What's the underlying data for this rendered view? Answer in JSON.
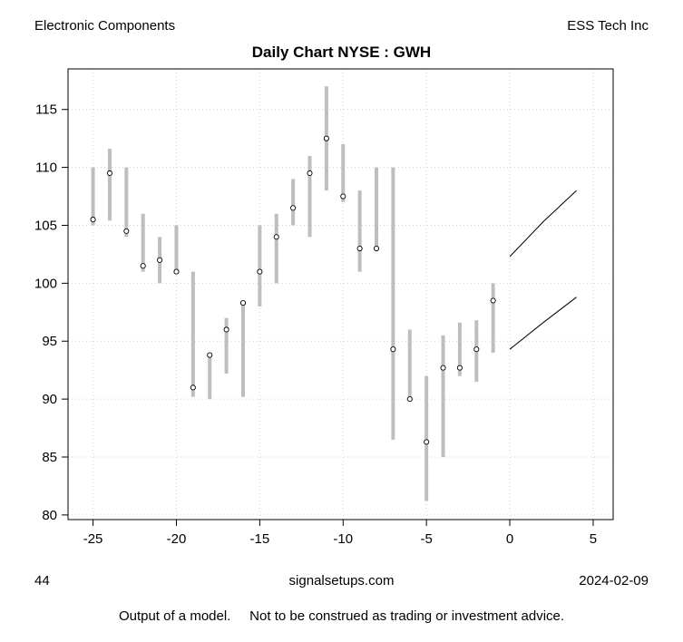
{
  "header": {
    "left": "Electronic Components",
    "right": "ESS Tech Inc"
  },
  "footer": {
    "left": "44",
    "center": "signalsetups.com",
    "right": "2024-02-09",
    "disclaimer": "Output of a model.     Not to be construed as trading or investment advice."
  },
  "chart_data": {
    "type": "range-bar",
    "title": "Daily Chart NYSE : GWH",
    "xlabel": "",
    "ylabel": "",
    "xlim": [
      -26.5,
      6.2
    ],
    "ylim": [
      79.6,
      118.5
    ],
    "x_ticks": [
      -25,
      -20,
      -15,
      -10,
      -5,
      0,
      5
    ],
    "y_ticks": [
      80,
      85,
      90,
      95,
      100,
      105,
      110,
      115
    ],
    "grid": true,
    "bar_color": "#bebebe",
    "line_color": "#000000",
    "series": [
      {
        "x": -25,
        "low": 105.0,
        "high": 110.0,
        "close": 105.5
      },
      {
        "x": -24,
        "low": 105.4,
        "high": 111.6,
        "close": 109.5
      },
      {
        "x": -23,
        "low": 104.0,
        "high": 110.0,
        "close": 104.5
      },
      {
        "x": -22,
        "low": 101.0,
        "high": 106.0,
        "close": 101.5
      },
      {
        "x": -21,
        "low": 100.0,
        "high": 104.0,
        "close": 102.0
      },
      {
        "x": -20,
        "low": 101.0,
        "high": 105.0,
        "close": 101.0
      },
      {
        "x": -19,
        "low": 90.2,
        "high": 101.0,
        "close": 91.0
      },
      {
        "x": -18,
        "low": 90.0,
        "high": 94.0,
        "close": 93.8
      },
      {
        "x": -17,
        "low": 92.2,
        "high": 97.0,
        "close": 96.0
      },
      {
        "x": -16,
        "low": 90.2,
        "high": 98.5,
        "close": 98.3
      },
      {
        "x": -15,
        "low": 98.0,
        "high": 105.0,
        "close": 101.0
      },
      {
        "x": -14,
        "low": 100.0,
        "high": 106.0,
        "close": 104.0
      },
      {
        "x": -13,
        "low": 105.0,
        "high": 109.0,
        "close": 106.5
      },
      {
        "x": -12,
        "low": 104.0,
        "high": 111.0,
        "close": 109.5
      },
      {
        "x": -11,
        "low": 108.0,
        "high": 117.0,
        "close": 112.5
      },
      {
        "x": -10,
        "low": 107.0,
        "high": 112.0,
        "close": 107.5
      },
      {
        "x": -9,
        "low": 101.0,
        "high": 108.0,
        "close": 103.0
      },
      {
        "x": -8,
        "low": 103.0,
        "high": 110.0,
        "close": 103.0
      },
      {
        "x": -7,
        "low": 86.5,
        "high": 110.0,
        "close": 94.3
      },
      {
        "x": -6,
        "low": 90.0,
        "high": 96.0,
        "close": 90.0
      },
      {
        "x": -5,
        "low": 81.2,
        "high": 92.0,
        "close": 86.3
      },
      {
        "x": -4,
        "low": 85.0,
        "high": 95.5,
        "close": 92.7
      },
      {
        "x": -3,
        "low": 92.0,
        "high": 96.6,
        "close": 92.7
      },
      {
        "x": -2,
        "low": 91.5,
        "high": 96.8,
        "close": 94.3
      },
      {
        "x": -1,
        "low": 94.0,
        "high": 100.0,
        "close": 98.5
      }
    ],
    "projection_upper": [
      {
        "x": 0,
        "y": 102.3
      },
      {
        "x": 2,
        "y": 105.3
      },
      {
        "x": 4,
        "y": 108.0
      }
    ],
    "projection_lower": [
      {
        "x": 0,
        "y": 94.3
      },
      {
        "x": 2,
        "y": 96.6
      },
      {
        "x": 4,
        "y": 98.8
      }
    ]
  }
}
